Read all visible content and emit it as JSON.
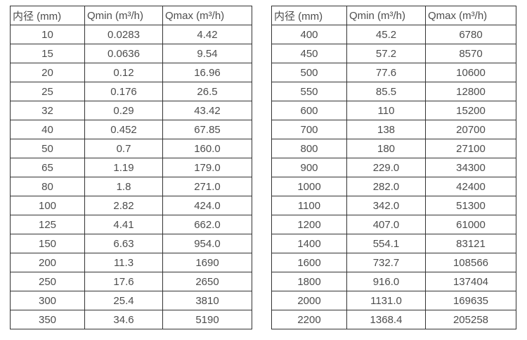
{
  "page": {
    "background_color": "#ffffff",
    "text_color": "#4d4d4d",
    "border_color": "#333333"
  },
  "chart_data": [
    {
      "type": "table",
      "columns": [
        "内径 (mm)",
        "Qmin (m³/h)",
        "Qmax (m³/h)"
      ],
      "rows": [
        [
          "10",
          "0.0283",
          "4.42"
        ],
        [
          "15",
          "0.0636",
          "9.54"
        ],
        [
          "20",
          "0.12",
          "16.96"
        ],
        [
          "25",
          "0.176",
          "26.5"
        ],
        [
          "32",
          "0.29",
          "43.42"
        ],
        [
          "40",
          "0.452",
          "67.85"
        ],
        [
          "50",
          "0.7",
          "160.0"
        ],
        [
          "65",
          "1.19",
          "179.0"
        ],
        [
          "80",
          "1.8",
          "271.0"
        ],
        [
          "100",
          "2.82",
          "424.0"
        ],
        [
          "125",
          "4.41",
          "662.0"
        ],
        [
          "150",
          "6.63",
          "954.0"
        ],
        [
          "200",
          "11.3",
          "1690"
        ],
        [
          "250",
          "17.6",
          "2650"
        ],
        [
          "300",
          "25.4",
          "3810"
        ],
        [
          "350",
          "34.6",
          "5190"
        ]
      ]
    },
    {
      "type": "table",
      "columns": [
        "内径 (mm)",
        "Qmin (m³/h)",
        "Qmax (m³/h)"
      ],
      "rows": [
        [
          "400",
          "45.2",
          "6780"
        ],
        [
          "450",
          "57.2",
          "8570"
        ],
        [
          "500",
          "77.6",
          "10600"
        ],
        [
          "550",
          "85.5",
          "12800"
        ],
        [
          "600",
          "110",
          "15200"
        ],
        [
          "700",
          "138",
          "20700"
        ],
        [
          "800",
          "180",
          "27100"
        ],
        [
          "900",
          "229.0",
          "34300"
        ],
        [
          "1000",
          "282.0",
          "42400"
        ],
        [
          "1100",
          "342.0",
          "51300"
        ],
        [
          "1200",
          "407.0",
          "61000"
        ],
        [
          "1400",
          "554.1",
          "83121"
        ],
        [
          "1600",
          "732.7",
          "108566"
        ],
        [
          "1800",
          "916.0",
          "137404"
        ],
        [
          "2000",
          "1131.0",
          "169635"
        ],
        [
          "2200",
          "1368.4",
          "205258"
        ]
      ]
    }
  ]
}
